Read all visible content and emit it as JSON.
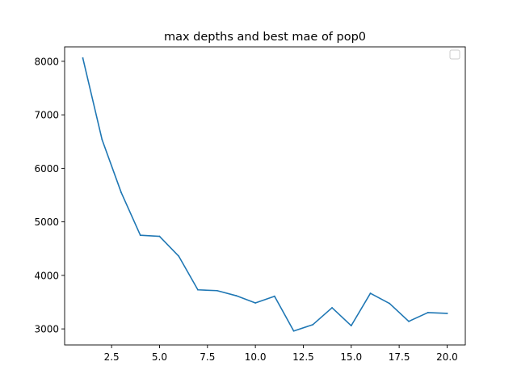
{
  "chart_data": {
    "type": "line",
    "title": "max depths and best mae of pop0",
    "xlabel": "",
    "ylabel": "",
    "xlim": [
      0.05,
      20.95
    ],
    "ylim": [
      2700,
      8270
    ],
    "xticks": [
      2.5,
      5.0,
      7.5,
      10.0,
      12.5,
      15.0,
      17.5,
      20.0
    ],
    "xtick_labels": [
      "2.5",
      "5.0",
      "7.5",
      "10.0",
      "12.5",
      "15.0",
      "17.5",
      "20.0"
    ],
    "yticks": [
      3000,
      4000,
      5000,
      6000,
      7000,
      8000
    ],
    "ytick_labels": [
      "3000",
      "4000",
      "5000",
      "6000",
      "7000",
      "8000"
    ],
    "grid": false,
    "legend": "top-right",
    "series": [
      {
        "color": "#1f77b4",
        "x": [
          1,
          2,
          3,
          4,
          5,
          6,
          7,
          8,
          9,
          10,
          11,
          12,
          13,
          14,
          15,
          16,
          17,
          18,
          19,
          20
        ],
        "y": [
          8060,
          6540,
          5550,
          4750,
          4730,
          4360,
          3730,
          3715,
          3620,
          3485,
          3610,
          2960,
          3080,
          3395,
          3060,
          3665,
          3475,
          3140,
          3305,
          3290
        ]
      }
    ]
  }
}
